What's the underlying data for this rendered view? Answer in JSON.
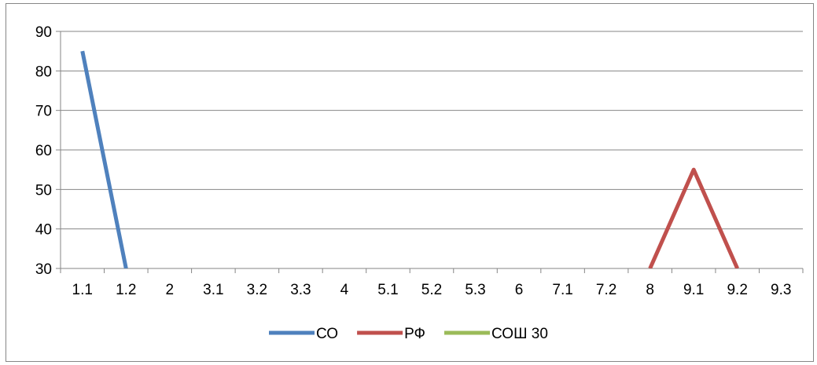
{
  "chart_data": {
    "type": "line",
    "categories": [
      "1.1",
      "1.2",
      "2",
      "3.1",
      "3.2",
      "3.3",
      "4",
      "5.1",
      "5.2",
      "5.3",
      "6",
      "7.1",
      "7.2",
      "8",
      "9.1",
      "9.2",
      "9.3"
    ],
    "ylim": [
      30,
      90
    ],
    "yticks": [
      30,
      40,
      50,
      60,
      70,
      80,
      90
    ],
    "grid": true,
    "legend_position": "bottom",
    "series": [
      {
        "name": "СО",
        "color": "#4F81BD",
        "values": [
          85,
          30,
          null,
          null,
          null,
          null,
          null,
          null,
          null,
          null,
          null,
          null,
          null,
          null,
          null,
          null,
          null
        ],
        "from": [
          null,
          null
        ],
        "to": [
          null,
          null
        ]
      },
      {
        "name": "РФ",
        "color": "#C0504D",
        "values": [
          null,
          null,
          null,
          null,
          null,
          null,
          null,
          null,
          null,
          null,
          null,
          null,
          null,
          30,
          55,
          30,
          null
        ]
      },
      {
        "name": "СОШ 30",
        "color": "#9BBB59",
        "values": [
          null,
          null,
          null,
          null,
          null,
          null,
          null,
          null,
          null,
          null,
          null,
          null,
          null,
          null,
          null,
          null,
          null
        ]
      }
    ],
    "title": "",
    "xlabel": "",
    "ylabel": ""
  }
}
